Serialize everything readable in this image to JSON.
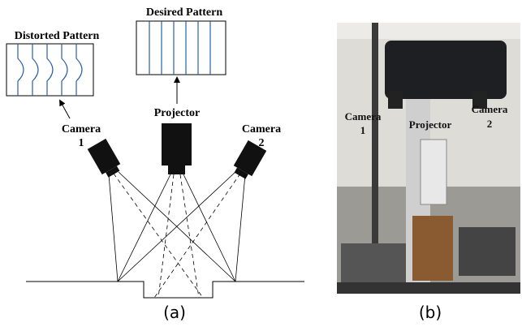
{
  "panel_a": {
    "distorted_pattern": "Distorted Pattern",
    "desired_pattern": "Desired Pattern",
    "projector": "Projector",
    "camera_1": [
      "Camera",
      "1"
    ],
    "camera_2": [
      "Camera",
      "2"
    ],
    "caption": "(a)"
  },
  "panel_b": {
    "camera_1": [
      "Camera",
      "1"
    ],
    "projector": "Projector",
    "camera_2": [
      "Camera",
      "2"
    ],
    "caption": "(b)"
  }
}
